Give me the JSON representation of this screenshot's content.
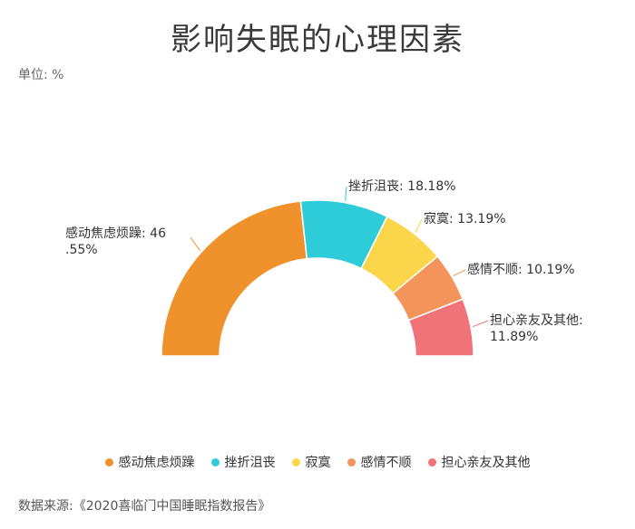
{
  "title": "影响失眠的心理因素",
  "unit_label": "单位: %",
  "source": "数据来源:《2020喜临门中国睡眠指数报告》",
  "chart_data": {
    "type": "pie",
    "style": "half-donut",
    "categories": [
      "感动焦虑烦躁",
      "挫折沮丧",
      "寂寞",
      "感情不顺",
      "担心亲友及其他"
    ],
    "values": [
      46.55,
      18.18,
      13.19,
      10.19,
      11.89
    ],
    "colors": [
      "#F0922B",
      "#2ECBD9",
      "#FCD64A",
      "#F3945B",
      "#F0737A"
    ],
    "labels": [
      [
        "感动焦虑烦躁: 46",
        ".55%"
      ],
      [
        "挫折沮丧: 18.18%"
      ],
      [
        "寂寞: 13.19%"
      ],
      [
        "感情不顺: 10.19%"
      ],
      [
        "担心亲友及其他:",
        "11.89%"
      ]
    ],
    "legend_position": "bottom"
  }
}
